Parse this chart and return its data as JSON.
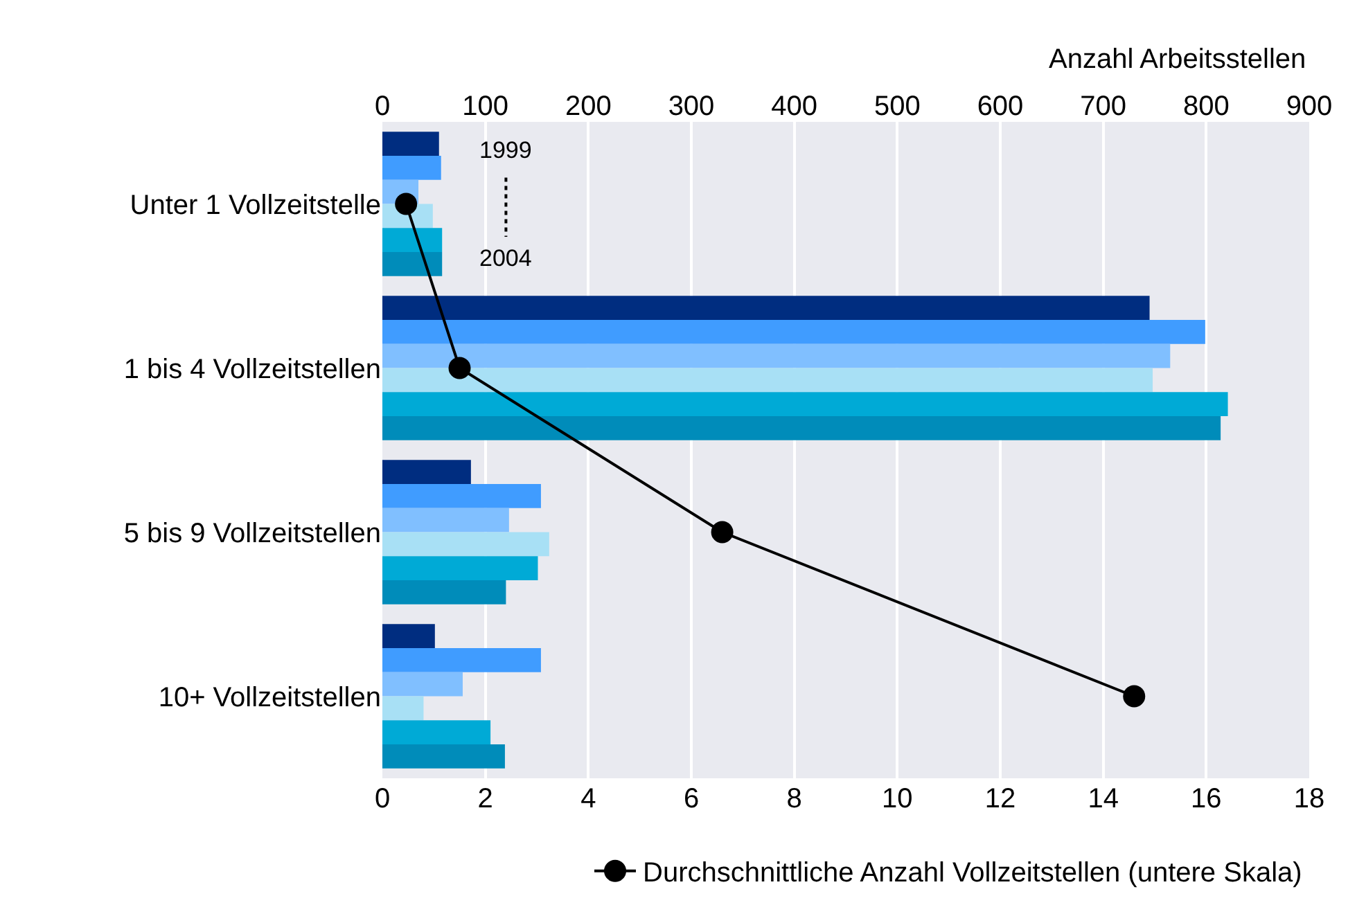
{
  "chart_data": {
    "type": "bar",
    "orientation": "horizontal",
    "x2label": "Anzahl Arbeitsstellen",
    "categories": [
      "Unter 1 Vollzeitstelle",
      "1 bis 4 Vollzeitstellen",
      "5 bis 9 Vollzeitstellen",
      "10+ Vollzeitstellen"
    ],
    "series": [
      {
        "color": "#002d80",
        "axis": "x2",
        "values": [
          55,
          745,
          86,
          51
        ]
      },
      {
        "color": "#409cff",
        "axis": "x2",
        "values": [
          57,
          799,
          154,
          154
        ]
      },
      {
        "color": "#80bfff",
        "axis": "x2",
        "values": [
          35,
          765,
          123,
          78
        ]
      },
      {
        "color": "#a8e0f5",
        "axis": "x2",
        "values": [
          49,
          748,
          162,
          40
        ]
      },
      {
        "color": "#00aad6",
        "axis": "x2",
        "values": [
          58,
          821,
          151,
          105
        ]
      },
      {
        "color": "#008cba",
        "axis": "x2",
        "values": [
          58,
          814,
          120,
          119
        ]
      },
      {
        "type": "line",
        "name": "Durchschnittliche Anzahl Vollzeitstellen (untere Skala)",
        "color": "#000000",
        "marker": "circle",
        "values": [
          0.46,
          1.5,
          6.6,
          14.6
        ]
      }
    ],
    "x2lim": [
      0,
      900
    ],
    "x2ticks": [
      0,
      100,
      200,
      300,
      400,
      500,
      600,
      700,
      800,
      900
    ],
    "xlim": [
      0,
      18
    ],
    "xticks": [
      0,
      2,
      4,
      6,
      8,
      10,
      12,
      14,
      16,
      18
    ],
    "annotations": [
      "1999",
      "2004"
    ],
    "grid": "x",
    "legend": "bottom"
  }
}
